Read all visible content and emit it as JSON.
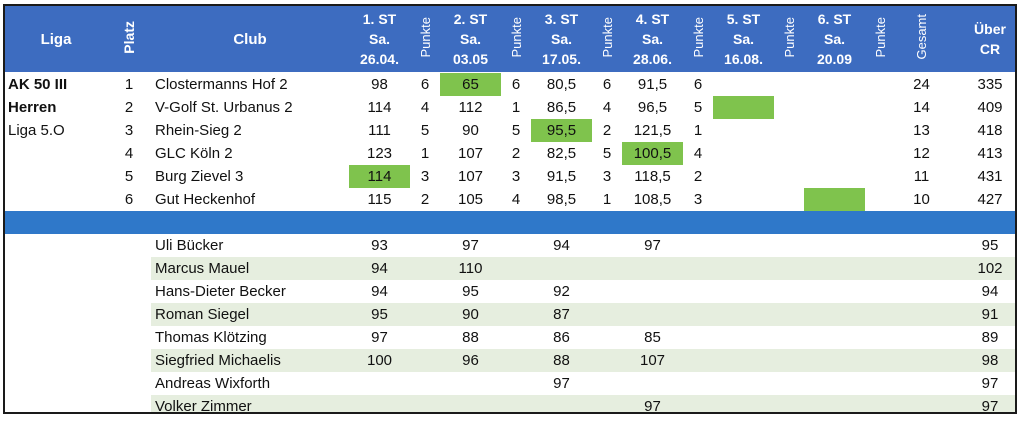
{
  "header": {
    "liga": "Liga",
    "platz": "Platz",
    "club": "Club",
    "punkte": "Punkte",
    "gesamt": "Gesamt",
    "ueber_1": "Über",
    "ueber_2": "CR",
    "stages": [
      {
        "l1": "1. ST",
        "l2": "Sa.",
        "l3": "26.04."
      },
      {
        "l1": "2. ST",
        "l2": "Sa.",
        "l3": "03.05"
      },
      {
        "l1": "3. ST",
        "l2": "Sa.",
        "l3": "17.05."
      },
      {
        "l1": "4. ST",
        "l2": "Sa.",
        "l3": "28.06."
      },
      {
        "l1": "5. ST",
        "l2": "Sa.",
        "l3": "16.08."
      },
      {
        "l1": "6. ST",
        "l2": "Sa.",
        "l3": "20.09"
      }
    ]
  },
  "liga_info": {
    "line1": "AK 50 III",
    "line2": "Herren",
    "line3": "Liga 5.O"
  },
  "teams": [
    {
      "platz": "1",
      "club": "Clostermanns Hof 2",
      "s1": "98",
      "p1": "6",
      "s2": "65",
      "p2": "6",
      "s3": "80,5",
      "p3": "6",
      "s4": "91,5",
      "p4": "6",
      "s5": "",
      "p5": "",
      "s6": "",
      "p6": "",
      "gesamt": "24",
      "cr": "335"
    },
    {
      "platz": "2",
      "club": "V-Golf St. Urbanus 2",
      "s1": "114",
      "p1": "4",
      "s2": "112",
      "p2": "1",
      "s3": "86,5",
      "p3": "4",
      "s4": "96,5",
      "p4": "5",
      "s5": "",
      "p5": "",
      "s6": "",
      "p6": "",
      "gesamt": "14",
      "cr": "409"
    },
    {
      "platz": "3",
      "club": "Rhein-Sieg 2",
      "s1": "111",
      "p1": "5",
      "s2": "90",
      "p2": "5",
      "s3": "95,5",
      "p3": "2",
      "s4": "121,5",
      "p4": "1",
      "s5": "",
      "p5": "",
      "s6": "",
      "p6": "",
      "gesamt": "13",
      "cr": "418"
    },
    {
      "platz": "4",
      "club": "GLC Köln 2",
      "s1": "123",
      "p1": "1",
      "s2": "107",
      "p2": "2",
      "s3": "82,5",
      "p3": "5",
      "s4": "100,5",
      "p4": "4",
      "s5": "",
      "p5": "",
      "s6": "",
      "p6": "",
      "gesamt": "12",
      "cr": "413"
    },
    {
      "platz": "5",
      "club": "Burg Zievel 3",
      "s1": "114",
      "p1": "3",
      "s2": "107",
      "p2": "3",
      "s3": "91,5",
      "p3": "3",
      "s4": "118,5",
      "p4": "2",
      "s5": "",
      "p5": "",
      "s6": "",
      "p6": "",
      "gesamt": "11",
      "cr": "431"
    },
    {
      "platz": "6",
      "club": "Gut Heckenhof",
      "s1": "115",
      "p1": "2",
      "s2": "105",
      "p2": "4",
      "s3": "98,5",
      "p3": "1",
      "s4": "108,5",
      "p4": "3",
      "s5": "",
      "p5": "",
      "s6": "",
      "p6": "",
      "gesamt": "10",
      "cr": "427"
    }
  ],
  "players": [
    {
      "name": "Uli Bücker",
      "s1": "93",
      "s2": "97",
      "s3": "94",
      "s4": "97",
      "cr": "95"
    },
    {
      "name": "Marcus Mauel",
      "s1": "94",
      "s2": "110",
      "s3": "",
      "s4": "",
      "cr": "102"
    },
    {
      "name": "Hans-Dieter Becker",
      "s1": "94",
      "s2": "95",
      "s3": "92",
      "s4": "",
      "cr": "94"
    },
    {
      "name": "Roman Siegel",
      "s1": "95",
      "s2": "90",
      "s3": "87",
      "s4": "",
      "cr": "91"
    },
    {
      "name": "Thomas Klötzing",
      "s1": "97",
      "s2": "88",
      "s3": "86",
      "s4": "85",
      "cr": "89"
    },
    {
      "name": "Siegfried Michaelis",
      "s1": "100",
      "s2": "96",
      "s3": "88",
      "s4": "107",
      "cr": "98"
    },
    {
      "name": "Andreas Wixforth",
      "s1": "",
      "s2": "",
      "s3": "97",
      "s4": "",
      "cr": "97"
    },
    {
      "name": "Volker Zimmer",
      "s1": "",
      "s2": "",
      "s3": "",
      "s4": "97",
      "cr": "97"
    }
  ],
  "colors": {
    "header_blue": "#3d6cc0",
    "separator_blue": "#2f78c9",
    "highlight_green": "#7fc34d",
    "row_alt": "#e6eedf"
  }
}
